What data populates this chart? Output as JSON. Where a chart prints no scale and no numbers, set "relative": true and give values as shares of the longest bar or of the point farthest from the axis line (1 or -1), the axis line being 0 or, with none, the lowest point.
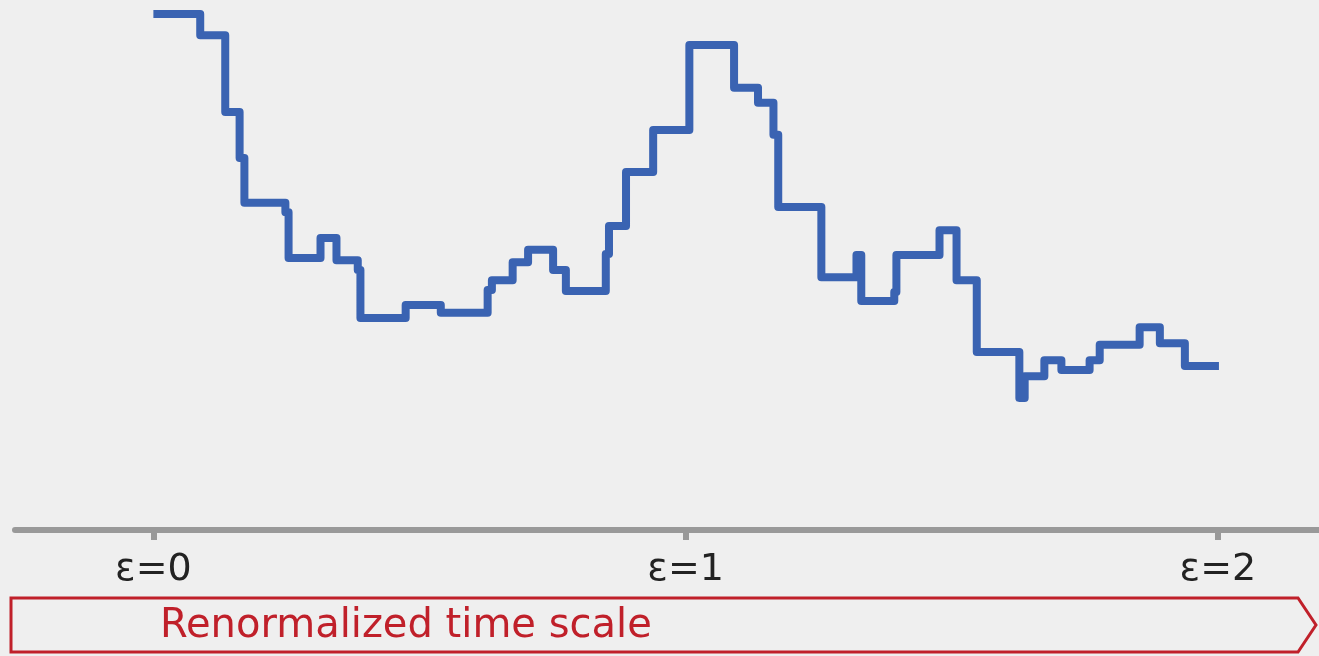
{
  "chart_data": {
    "type": "step",
    "relative": true,
    "xlabel": "Renormalized time scale",
    "tick_labels": "x",
    "xlim": [
      -0.26,
      2.19
    ],
    "xticks": [
      {
        "value": 0,
        "label": "ε=0"
      },
      {
        "value": 1,
        "label": "ε=1"
      },
      {
        "value": 2,
        "label": "ε=2"
      }
    ],
    "x": [
      0,
      0.088,
      0.135,
      0.162,
      0.171,
      0.248,
      0.254,
      0.314,
      0.344,
      0.384,
      0.389,
      0.474,
      0.54,
      0.628,
      0.636,
      0.675,
      0.704,
      0.751,
      0.775,
      0.85,
      0.856,
      0.888,
      0.939,
      1.007,
      1.091,
      1.136,
      1.165,
      1.174,
      1.255,
      1.321,
      1.33,
      1.392,
      1.396,
      1.477,
      1.509,
      1.547,
      1.627,
      1.637,
      1.674,
      1.706,
      1.759,
      1.778,
      1.853,
      1.891,
      1.938,
      2.002
    ],
    "series": [
      {
        "color": "#3a63b2",
        "values": [
          1.0,
          0.959,
          0.81,
          0.721,
          0.634,
          0.616,
          0.527,
          0.566,
          0.523,
          0.504,
          0.411,
          0.436,
          0.421,
          0.465,
          0.484,
          0.519,
          0.543,
          0.504,
          0.463,
          0.535,
          0.589,
          0.694,
          0.775,
          0.94,
          0.857,
          0.828,
          0.766,
          0.626,
          0.49,
          0.533,
          0.444,
          0.461,
          0.533,
          0.581,
          0.484,
          0.345,
          0.256,
          0.298,
          0.329,
          0.31,
          0.329,
          0.359,
          0.393,
          0.362,
          0.318,
          0.318
        ]
      }
    ]
  }
}
